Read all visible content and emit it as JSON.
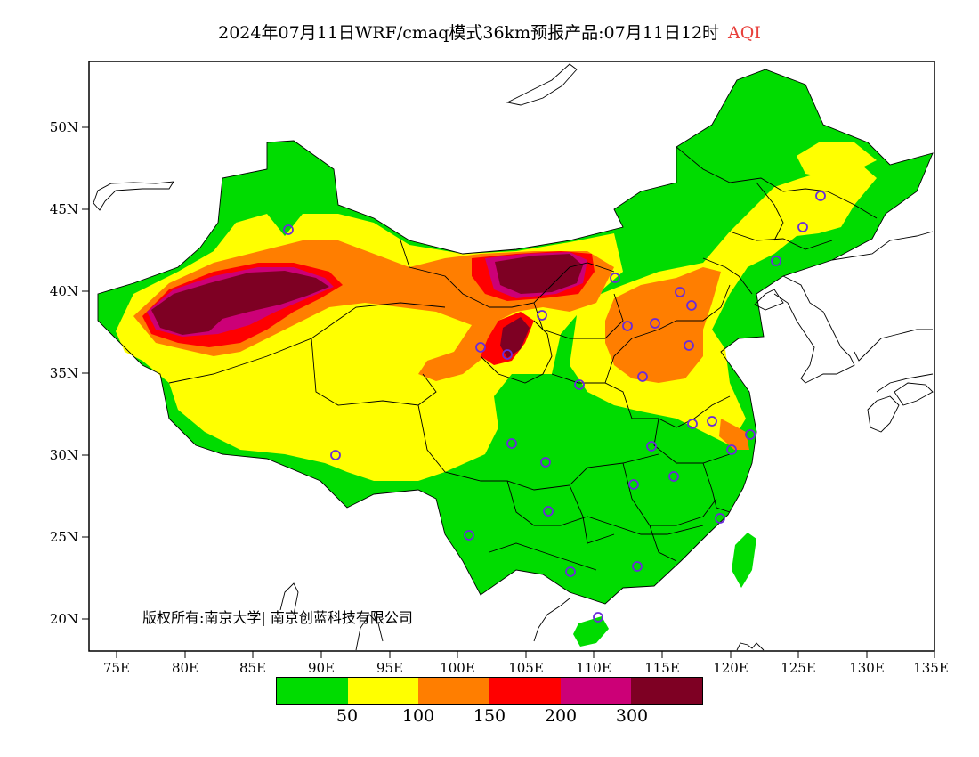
{
  "title": {
    "text": "2024年07月11日WRF/cmaq模式36km预报产品:07月11日12时",
    "variable": "AQI"
  },
  "axes": {
    "y_ticks": [
      "50N",
      "45N",
      "40N",
      "35N",
      "30N",
      "25N",
      "20N"
    ],
    "x_ticks": [
      "75E",
      "80E",
      "85E",
      "90E",
      "95E",
      "100E",
      "105E",
      "110E",
      "115E",
      "120E",
      "125E",
      "130E",
      "135E"
    ]
  },
  "copyright": "版权所有:南京大学| 南京创蓝科技有限公司",
  "legend": {
    "colors": [
      "#00dc00",
      "#ffff00",
      "#ff7e00",
      "#ff0000",
      "#cc0077",
      "#7e0023"
    ],
    "labels": [
      "50",
      "100",
      "150",
      "200",
      "300"
    ]
  },
  "colors": {
    "good": "#00dc00",
    "moderate": "#ffff00",
    "usg": "#ff7e00",
    "unhealthy": "#ff0000",
    "very_unhealthy": "#cc0077",
    "hazardous": "#7e0023",
    "station_marker": "#6a2bd9"
  }
}
